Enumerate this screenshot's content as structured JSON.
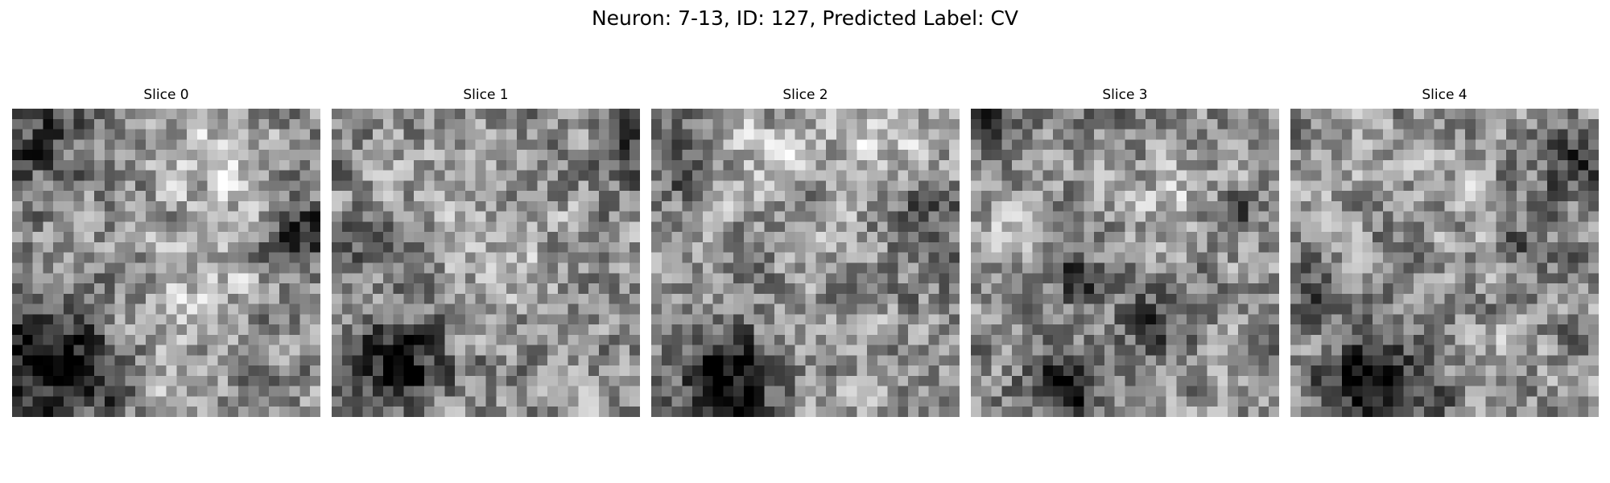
{
  "figure": {
    "title": "Neuron: 7-13, ID: 127, Predicted Label: CV"
  },
  "slices": [
    {
      "label": "Slice 0",
      "dark_blobs": [
        [
          0.1,
          0.8,
          0.2,
          0.95
        ],
        [
          0.05,
          0.08,
          0.2,
          0.5
        ],
        [
          0.96,
          0.4,
          0.13,
          0.55
        ],
        [
          0.3,
          0.9,
          0.1,
          0.55
        ]
      ],
      "light_blobs": [
        [
          0.65,
          0.15,
          0.18,
          0.55
        ],
        [
          0.6,
          0.55,
          0.2,
          0.35
        ],
        [
          0.45,
          0.9,
          0.15,
          0.3
        ]
      ],
      "seed": 11
    },
    {
      "label": "Slice 1",
      "dark_blobs": [
        [
          0.22,
          0.82,
          0.14,
          0.95
        ],
        [
          0.12,
          0.45,
          0.1,
          0.35
        ],
        [
          0.97,
          0.12,
          0.1,
          0.4
        ]
      ],
      "light_blobs": [
        [
          0.62,
          0.45,
          0.18,
          0.4
        ],
        [
          0.35,
          0.25,
          0.15,
          0.3
        ]
      ],
      "seed": 23
    },
    {
      "label": "Slice 2",
      "dark_blobs": [
        [
          0.25,
          0.88,
          0.15,
          1.0
        ],
        [
          0.92,
          0.35,
          0.12,
          0.5
        ],
        [
          0.05,
          0.2,
          0.1,
          0.4
        ],
        [
          0.62,
          0.62,
          0.08,
          0.3
        ]
      ],
      "light_blobs": [
        [
          0.72,
          0.12,
          0.18,
          0.6
        ],
        [
          0.35,
          0.15,
          0.15,
          0.45
        ],
        [
          0.55,
          0.6,
          0.12,
          0.3
        ]
      ],
      "seed": 37
    },
    {
      "label": "Slice 3",
      "dark_blobs": [
        [
          0.3,
          0.9,
          0.12,
          1.0
        ],
        [
          0.35,
          0.55,
          0.08,
          0.6
        ],
        [
          0.6,
          0.7,
          0.1,
          0.55
        ],
        [
          0.05,
          0.05,
          0.08,
          0.5
        ],
        [
          0.85,
          0.35,
          0.08,
          0.45
        ]
      ],
      "light_blobs": [
        [
          0.15,
          0.35,
          0.13,
          0.45
        ],
        [
          0.65,
          0.3,
          0.13,
          0.5
        ],
        [
          0.82,
          0.9,
          0.1,
          0.35
        ]
      ],
      "seed": 53
    },
    {
      "label": "Slice 4",
      "dark_blobs": [
        [
          0.28,
          0.9,
          0.18,
          0.85
        ],
        [
          0.92,
          0.15,
          0.12,
          0.55
        ],
        [
          0.1,
          0.6,
          0.1,
          0.4
        ],
        [
          0.75,
          0.45,
          0.1,
          0.35
        ]
      ],
      "light_blobs": [
        [
          0.18,
          0.15,
          0.15,
          0.4
        ],
        [
          0.55,
          0.3,
          0.12,
          0.35
        ],
        [
          0.7,
          0.8,
          0.12,
          0.3
        ]
      ],
      "seed": 71
    }
  ],
  "grid_size": 30,
  "colormap": "gray"
}
